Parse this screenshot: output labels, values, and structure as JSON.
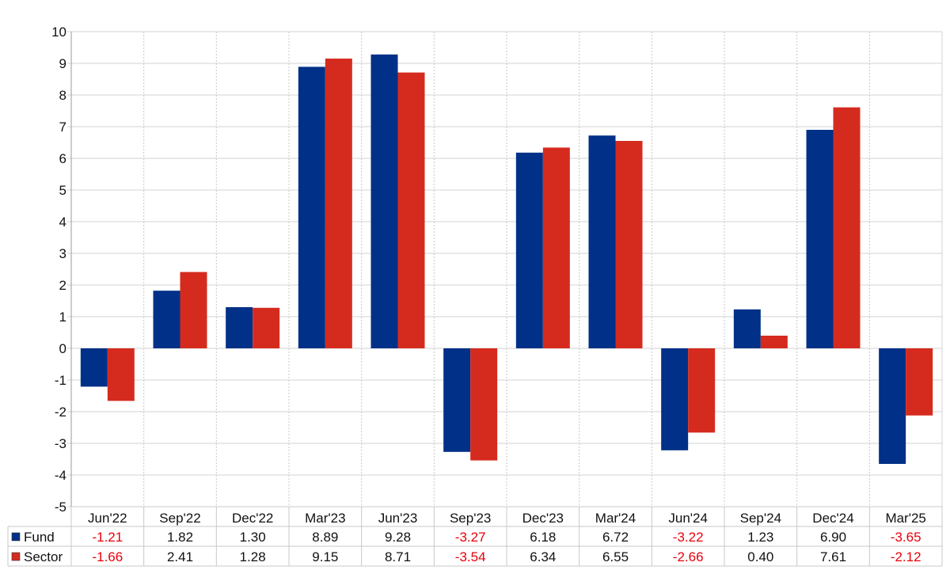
{
  "chart_data": {
    "type": "bar",
    "categories": [
      "Jun'22",
      "Sep'22",
      "Dec'22",
      "Mar'23",
      "Jun'23",
      "Sep'23",
      "Dec'23",
      "Mar'24",
      "Jun'24",
      "Sep'24",
      "Dec'24",
      "Mar'25"
    ],
    "series": [
      {
        "name": "Fund",
        "color": "#003087",
        "values": [
          -1.21,
          1.82,
          1.3,
          8.89,
          9.28,
          -3.27,
          6.18,
          6.72,
          -3.22,
          1.23,
          6.9,
          -3.65
        ]
      },
      {
        "name": "Sector",
        "color": "#d52b1e",
        "values": [
          -1.66,
          2.41,
          1.28,
          9.15,
          8.71,
          -3.54,
          6.34,
          6.55,
          -2.66,
          0.4,
          7.61,
          -2.12
        ]
      }
    ],
    "value_labels": {
      "Fund": [
        "-1.21",
        "1.82",
        "1.30",
        "8.89",
        "9.28",
        "-3.27",
        "6.18",
        "6.72",
        "-3.22",
        "1.23",
        "6.90",
        "-3.65"
      ],
      "Sector": [
        "-1.66",
        "2.41",
        "1.28",
        "9.15",
        "8.71",
        "-3.54",
        "6.34",
        "6.55",
        "-2.66",
        "0.40",
        "7.61",
        "-2.12"
      ]
    },
    "y_ticks": [
      "10",
      "9",
      "8",
      "7",
      "6",
      "5",
      "4",
      "3",
      "2",
      "1",
      "0",
      "-1",
      "-2",
      "-3",
      "-4",
      "-5"
    ],
    "ylim": [
      -5,
      10
    ],
    "grid": true,
    "legend": "data-table-rows",
    "negative_color": "#e8000b",
    "positive_color": "#111111"
  }
}
